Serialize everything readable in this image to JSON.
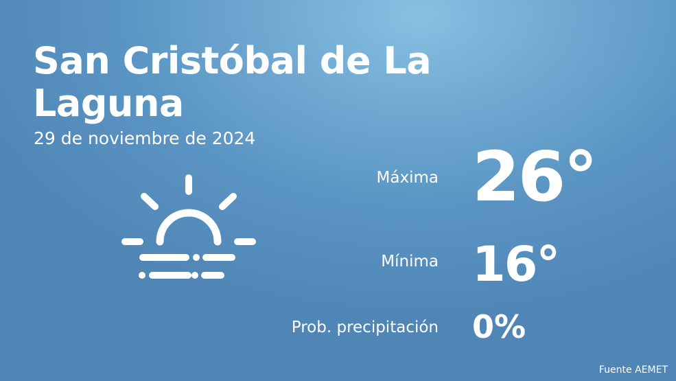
{
  "location": {
    "city": "San Cristóbal de La Laguna",
    "date": "29 de noviembre de 2024"
  },
  "forecast": {
    "icon": "sun-fog-icon",
    "max_label": "Máxima",
    "max_value": "26°",
    "min_label": "Mínima",
    "min_value": "16°",
    "precip_label": "Prob. precipitación",
    "precip_value": "0%"
  },
  "footer": {
    "source": "Fuente AEMET"
  },
  "colors": {
    "background_top": "#86c0e2",
    "background_bottom": "#4f86b6",
    "text": "#ffffff"
  }
}
